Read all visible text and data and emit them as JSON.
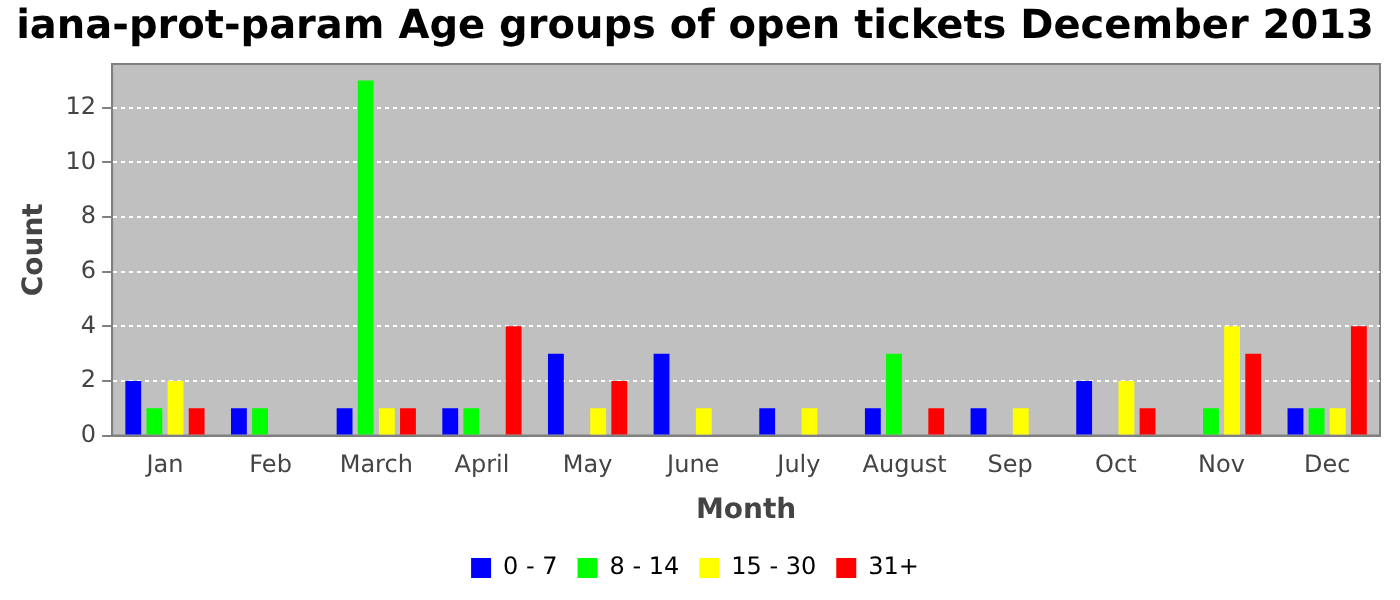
{
  "chart_data": {
    "type": "bar",
    "title": "iana-prot-param Age groups of open tickets December 2013",
    "xlabel": "Month",
    "ylabel": "Count",
    "categories": [
      "Jan",
      "Feb",
      "March",
      "April",
      "May",
      "June",
      "July",
      "August",
      "Sep",
      "Oct",
      "Nov",
      "Dec"
    ],
    "series": [
      {
        "name": "0 - 7",
        "color": "#0000ff",
        "values": [
          2,
          1,
          1,
          1,
          3,
          3,
          1,
          1,
          1,
          2,
          0,
          1
        ]
      },
      {
        "name": "8 - 14",
        "color": "#00ff00",
        "values": [
          1,
          1,
          13,
          1,
          0,
          0,
          0,
          3,
          0,
          0,
          1,
          1
        ]
      },
      {
        "name": "15 - 30",
        "color": "#ffff00",
        "values": [
          2,
          0,
          1,
          0,
          1,
          1,
          1,
          0,
          1,
          2,
          4,
          1
        ]
      },
      {
        "name": "31+",
        "color": "#ff0000",
        "values": [
          1,
          0,
          1,
          4,
          2,
          0,
          0,
          1,
          0,
          1,
          3,
          4
        ]
      }
    ],
    "ylim": [
      0,
      13.6
    ],
    "yticks": [
      0,
      2,
      4,
      6,
      8,
      10,
      12
    ],
    "grid": "y",
    "legend": "bottom"
  }
}
